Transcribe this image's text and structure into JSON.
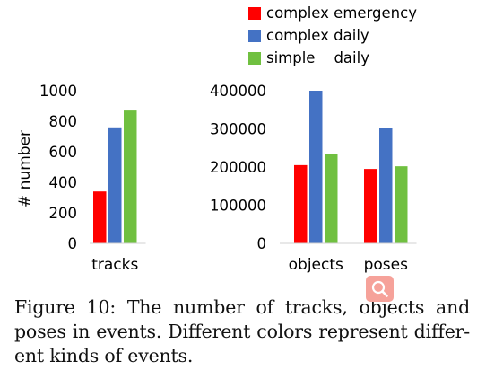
{
  "chart_data": {
    "type": "bar",
    "legend": {
      "placement": "top-right",
      "entries": [
        {
          "label": "complex emergency",
          "color": "#ff0000"
        },
        {
          "label": "complex daily",
          "color": "#4472c4"
        },
        {
          "label": "simple    daily",
          "color": "#70c040"
        }
      ]
    },
    "panels": [
      {
        "categories": [
          "tracks"
        ],
        "ylabel": "# number",
        "ylim": [
          0,
          1000
        ],
        "yticks": [
          "0",
          "200",
          "400",
          "600",
          "800",
          "1000"
        ],
        "grid": false,
        "series": [
          {
            "name": "complex emergency",
            "values": [
              340
            ]
          },
          {
            "name": "complex daily",
            "values": [
              760
            ]
          },
          {
            "name": "simple    daily",
            "values": [
              870
            ]
          }
        ]
      },
      {
        "categories": [
          "objects",
          "poses"
        ],
        "ylabel": "",
        "ylim": [
          0,
          400000
        ],
        "yticks": [
          "0",
          "100000",
          "200000",
          "300000",
          "400000"
        ],
        "grid": false,
        "series": [
          {
            "name": "complex emergency",
            "values": [
              205000,
              195000
            ]
          },
          {
            "name": "complex daily",
            "values": [
              400000,
              302000
            ]
          },
          {
            "name": "simple    daily",
            "values": [
              233000,
              202000
            ]
          }
        ]
      }
    ]
  },
  "caption": {
    "line1": "Figure 10: The number of tracks, objects and",
    "line2": "poses in events. Different colors represent differ-",
    "line3": "ent kinds of events."
  },
  "zoom_button": {
    "icon": "zoom-icon",
    "color": "#f6a29a"
  }
}
